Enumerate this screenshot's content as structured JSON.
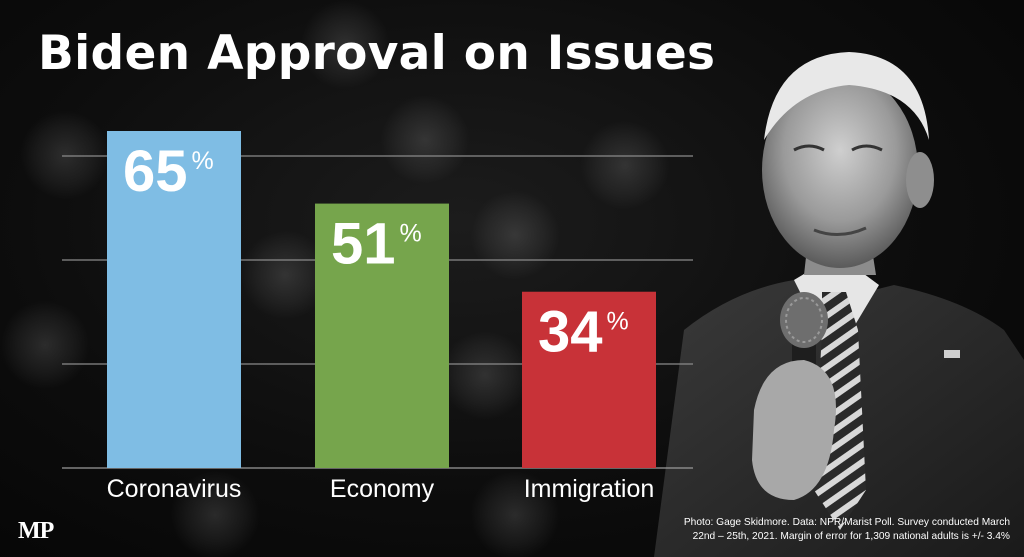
{
  "title": "Biden Approval on Issues",
  "logo": "MP",
  "credit_line1": "Photo: Gage Skidmore. Data: NPR/Marist Poll. Survey conducted March",
  "credit_line2": "22nd – 25th, 2021. Margin of error for 1,309 national adults is +/- 3.4%",
  "chart_data": {
    "type": "bar",
    "title": "Biden Approval on Issues",
    "categories": [
      "Coronavirus",
      "Economy",
      "Immigration"
    ],
    "values": [
      65,
      51,
      34
    ],
    "value_suffix": "%",
    "colors": [
      "#7fbde4",
      "#76a54c",
      "#c83238"
    ],
    "ylim": [
      0,
      65
    ],
    "grid": true,
    "legend": "none"
  }
}
